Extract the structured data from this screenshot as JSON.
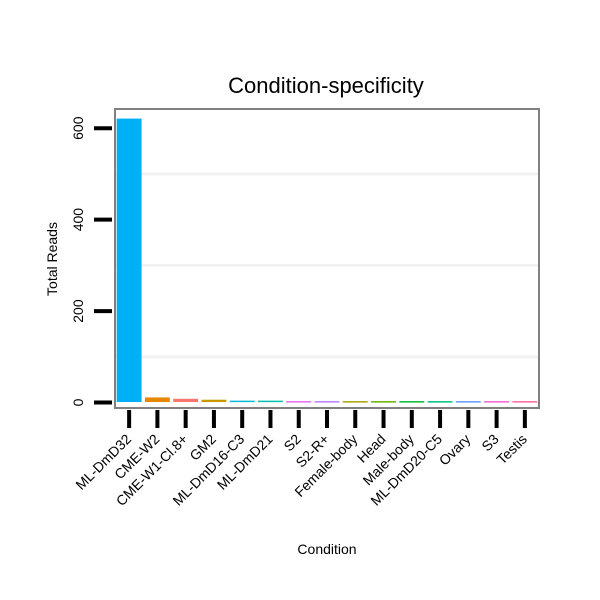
{
  "chart_data": {
    "type": "bar",
    "title": "Condition-specificity",
    "xlabel": "Condition",
    "ylabel": "Total Reads",
    "ylim": [
      -12,
      642
    ],
    "yticks": [
      0,
      200,
      400,
      600
    ],
    "gridlines": [
      100,
      300,
      500
    ],
    "categories": [
      "ML-DmD32",
      "CME-W2",
      "CME-W1-Cl.8+",
      "GM2",
      "ML-DmD16-C3",
      "ML-DmD21",
      "S2",
      "S2-R+",
      "Female-body",
      "Head",
      "Male-body",
      "ML-DmD20-C5",
      "Ovary",
      "S3",
      "Testis"
    ],
    "values": [
      620,
      10,
      7,
      5,
      3,
      3,
      2,
      2,
      2,
      2,
      2,
      2,
      2,
      2,
      2
    ],
    "colors": [
      "#00b0f6",
      "#e58700",
      "#f8766d",
      "#c99800",
      "#00bcd8",
      "#00c0af",
      "#e76bf3",
      "#b983ff",
      "#a3a500",
      "#6bb100",
      "#00ba38",
      "#00bf7d",
      "#619cff",
      "#fd61d1",
      "#ff67a4"
    ]
  }
}
